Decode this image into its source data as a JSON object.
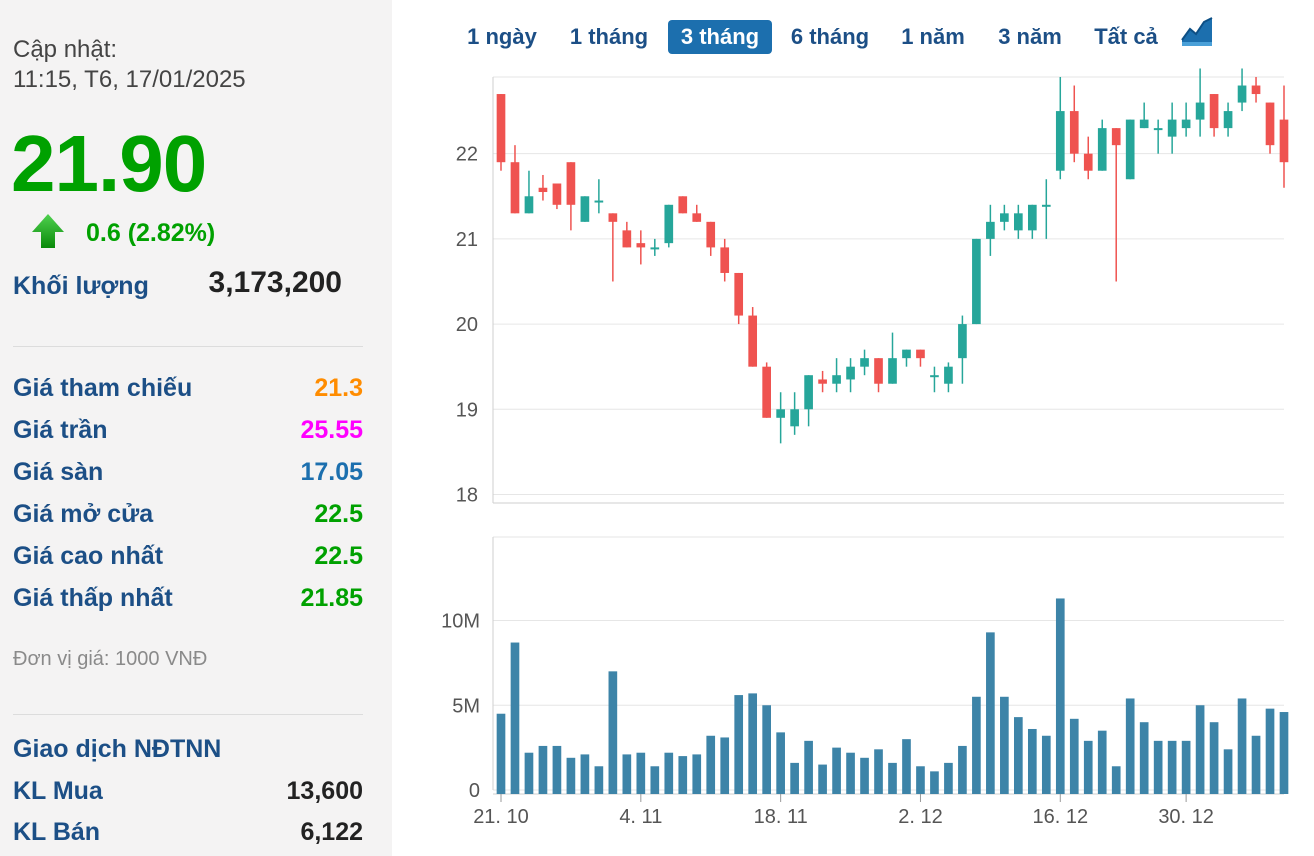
{
  "update": {
    "label": "Cập nhật:",
    "time": "11:15, T6, 17/01/2025"
  },
  "price": "21.90",
  "change": "0.6 (2.82%)",
  "change_direction": "up",
  "volume": {
    "label": "Khối lượng",
    "value": "3,173,200"
  },
  "stats": [
    {
      "label": "Giá tham chiếu",
      "value": "21.3",
      "color": "#ff8c00"
    },
    {
      "label": "Giá trần",
      "value": "25.55",
      "color": "#ff00ff"
    },
    {
      "label": "Giá sàn",
      "value": "17.05",
      "color": "#1c6fae"
    },
    {
      "label": "Giá mở cửa",
      "value": "22.5",
      "color": "#00a100"
    },
    {
      "label": "Giá cao nhất",
      "value": "22.5",
      "color": "#00a100"
    },
    {
      "label": "Giá thấp nhất",
      "value": "21.85",
      "color": "#00a100"
    }
  ],
  "unit_note": "Đơn vị giá: 1000 VNĐ",
  "foreign": {
    "title": "Giao dịch NĐTNN",
    "rows": [
      {
        "label": "KL Mua",
        "value": "13,600"
      },
      {
        "label": "KL Bán",
        "value": "6,122"
      }
    ]
  },
  "tabs": [
    {
      "label": "1 ngày",
      "active": false
    },
    {
      "label": "1 tháng",
      "active": false
    },
    {
      "label": "3 tháng",
      "active": true
    },
    {
      "label": "6 tháng",
      "active": false
    },
    {
      "label": "1 năm",
      "active": false
    },
    {
      "label": "3 năm",
      "active": false
    },
    {
      "label": "Tất cả",
      "active": false
    }
  ],
  "chart_icon": "area-chart-icon",
  "colors": {
    "up": "#26a69a",
    "down": "#ef5350",
    "volume": "#3d84a8",
    "grid": "#e6e6e6",
    "accent": "#1c6fae"
  },
  "chart_data": {
    "type": "candlestick",
    "price_axis": {
      "ticks": [
        18,
        19,
        20,
        21,
        22
      ],
      "ylim": [
        17.9,
        22.9
      ]
    },
    "volume_axis": {
      "ticks": [
        0,
        5,
        10
      ],
      "tick_labels": [
        "0",
        "5M",
        "10M"
      ],
      "unit": "M",
      "ylim": [
        0,
        14
      ]
    },
    "x_tick_labels": [
      {
        "index": 0,
        "label": "21. 10"
      },
      {
        "index": 10,
        "label": "4. 11"
      },
      {
        "index": 20,
        "label": "18. 11"
      },
      {
        "index": 30,
        "label": "2. 12"
      },
      {
        "index": 40,
        "label": "16. 12"
      },
      {
        "index": 49,
        "label": "30. 12"
      }
    ],
    "candles": [
      {
        "o": 22.7,
        "h": 22.7,
        "l": 21.8,
        "c": 21.9,
        "v": 4.5
      },
      {
        "o": 21.9,
        "h": 22.1,
        "l": 21.3,
        "c": 21.3,
        "v": 8.7
      },
      {
        "o": 21.3,
        "h": 21.8,
        "l": 21.3,
        "c": 21.5,
        "v": 2.2
      },
      {
        "o": 21.6,
        "h": 21.75,
        "l": 21.45,
        "c": 21.55,
        "v": 2.6
      },
      {
        "o": 21.65,
        "h": 21.65,
        "l": 21.35,
        "c": 21.4,
        "v": 2.6
      },
      {
        "o": 21.9,
        "h": 21.9,
        "l": 21.1,
        "c": 21.4,
        "v": 1.9
      },
      {
        "o": 21.2,
        "h": 21.5,
        "l": 21.2,
        "c": 21.5,
        "v": 2.1
      },
      {
        "o": 21.45,
        "h": 21.7,
        "l": 21.3,
        "c": 21.45,
        "v": 1.4
      },
      {
        "o": 21.3,
        "h": 21.3,
        "l": 20.5,
        "c": 21.2,
        "v": 7.0
      },
      {
        "o": 21.1,
        "h": 21.2,
        "l": 20.9,
        "c": 20.9,
        "v": 2.1
      },
      {
        "o": 20.95,
        "h": 21.1,
        "l": 20.7,
        "c": 20.9,
        "v": 2.2
      },
      {
        "o": 20.9,
        "h": 21.0,
        "l": 20.8,
        "c": 20.9,
        "v": 1.4
      },
      {
        "o": 20.95,
        "h": 21.4,
        "l": 20.9,
        "c": 21.4,
        "v": 2.2
      },
      {
        "o": 21.5,
        "h": 21.5,
        "l": 21.3,
        "c": 21.3,
        "v": 2.0
      },
      {
        "o": 21.3,
        "h": 21.4,
        "l": 21.2,
        "c": 21.2,
        "v": 2.1
      },
      {
        "o": 21.2,
        "h": 21.2,
        "l": 20.8,
        "c": 20.9,
        "v": 3.2
      },
      {
        "o": 20.9,
        "h": 21.0,
        "l": 20.5,
        "c": 20.6,
        "v": 3.1
      },
      {
        "o": 20.6,
        "h": 20.6,
        "l": 20.0,
        "c": 20.1,
        "v": 5.6
      },
      {
        "o": 20.1,
        "h": 20.2,
        "l": 19.5,
        "c": 19.5,
        "v": 5.7
      },
      {
        "o": 19.5,
        "h": 19.55,
        "l": 18.9,
        "c": 18.9,
        "v": 5.0
      },
      {
        "o": 18.9,
        "h": 19.2,
        "l": 18.6,
        "c": 19.0,
        "v": 3.4
      },
      {
        "o": 18.8,
        "h": 19.2,
        "l": 18.7,
        "c": 19.0,
        "v": 1.6
      },
      {
        "o": 19.0,
        "h": 19.4,
        "l": 18.8,
        "c": 19.4,
        "v": 2.9
      },
      {
        "o": 19.35,
        "h": 19.45,
        "l": 19.2,
        "c": 19.3,
        "v": 1.5
      },
      {
        "o": 19.3,
        "h": 19.6,
        "l": 19.2,
        "c": 19.4,
        "v": 2.5
      },
      {
        "o": 19.35,
        "h": 19.6,
        "l": 19.2,
        "c": 19.5,
        "v": 2.2
      },
      {
        "o": 19.5,
        "h": 19.7,
        "l": 19.4,
        "c": 19.6,
        "v": 1.9
      },
      {
        "o": 19.6,
        "h": 19.6,
        "l": 19.2,
        "c": 19.3,
        "v": 2.4
      },
      {
        "o": 19.3,
        "h": 19.9,
        "l": 19.3,
        "c": 19.6,
        "v": 1.6
      },
      {
        "o": 19.6,
        "h": 19.7,
        "l": 19.5,
        "c": 19.7,
        "v": 3.0
      },
      {
        "o": 19.7,
        "h": 19.7,
        "l": 19.5,
        "c": 19.6,
        "v": 1.4
      },
      {
        "o": 19.4,
        "h": 19.5,
        "l": 19.2,
        "c": 19.4,
        "v": 1.1
      },
      {
        "o": 19.3,
        "h": 19.55,
        "l": 19.2,
        "c": 19.5,
        "v": 1.6
      },
      {
        "o": 19.6,
        "h": 20.1,
        "l": 19.3,
        "c": 20.0,
        "v": 2.6
      },
      {
        "o": 20.0,
        "h": 21.0,
        "l": 20.0,
        "c": 21.0,
        "v": 5.5
      },
      {
        "o": 21.0,
        "h": 21.4,
        "l": 20.8,
        "c": 21.2,
        "v": 9.3
      },
      {
        "o": 21.2,
        "h": 21.4,
        "l": 21.1,
        "c": 21.3,
        "v": 5.5
      },
      {
        "o": 21.1,
        "h": 21.4,
        "l": 21.0,
        "c": 21.3,
        "v": 4.3
      },
      {
        "o": 21.1,
        "h": 21.4,
        "l": 21.0,
        "c": 21.4,
        "v": 3.6
      },
      {
        "o": 21.4,
        "h": 21.7,
        "l": 21.0,
        "c": 21.4,
        "v": 3.2
      },
      {
        "o": 21.8,
        "h": 22.9,
        "l": 21.7,
        "c": 22.5,
        "v": 11.3
      },
      {
        "o": 22.5,
        "h": 22.8,
        "l": 21.9,
        "c": 22.0,
        "v": 4.2
      },
      {
        "o": 22.0,
        "h": 22.2,
        "l": 21.7,
        "c": 21.8,
        "v": 2.9
      },
      {
        "o": 21.8,
        "h": 22.4,
        "l": 21.8,
        "c": 22.3,
        "v": 3.5
      },
      {
        "o": 22.3,
        "h": 22.3,
        "l": 20.5,
        "c": 22.1,
        "v": 1.4
      },
      {
        "o": 21.7,
        "h": 22.4,
        "l": 21.7,
        "c": 22.4,
        "v": 5.4
      },
      {
        "o": 22.3,
        "h": 22.6,
        "l": 22.3,
        "c": 22.4,
        "v": 4.0
      },
      {
        "o": 22.3,
        "h": 22.4,
        "l": 22.0,
        "c": 22.3,
        "v": 2.9
      },
      {
        "o": 22.2,
        "h": 22.6,
        "l": 22.0,
        "c": 22.4,
        "v": 2.9
      },
      {
        "o": 22.3,
        "h": 22.6,
        "l": 22.2,
        "c": 22.4,
        "v": 2.9
      },
      {
        "o": 22.4,
        "h": 23.0,
        "l": 22.2,
        "c": 22.6,
        "v": 5.0
      },
      {
        "o": 22.7,
        "h": 22.7,
        "l": 22.2,
        "c": 22.3,
        "v": 4.0
      },
      {
        "o": 22.3,
        "h": 22.6,
        "l": 22.2,
        "c": 22.5,
        "v": 2.4
      },
      {
        "o": 22.6,
        "h": 23.0,
        "l": 22.5,
        "c": 22.8,
        "v": 5.4
      },
      {
        "o": 22.8,
        "h": 22.9,
        "l": 22.6,
        "c": 22.7,
        "v": 3.2
      },
      {
        "o": 22.6,
        "h": 22.6,
        "l": 22.0,
        "c": 22.1,
        "v": 4.8
      },
      {
        "o": 22.4,
        "h": 22.8,
        "l": 21.6,
        "c": 21.9,
        "v": 4.6
      }
    ]
  }
}
